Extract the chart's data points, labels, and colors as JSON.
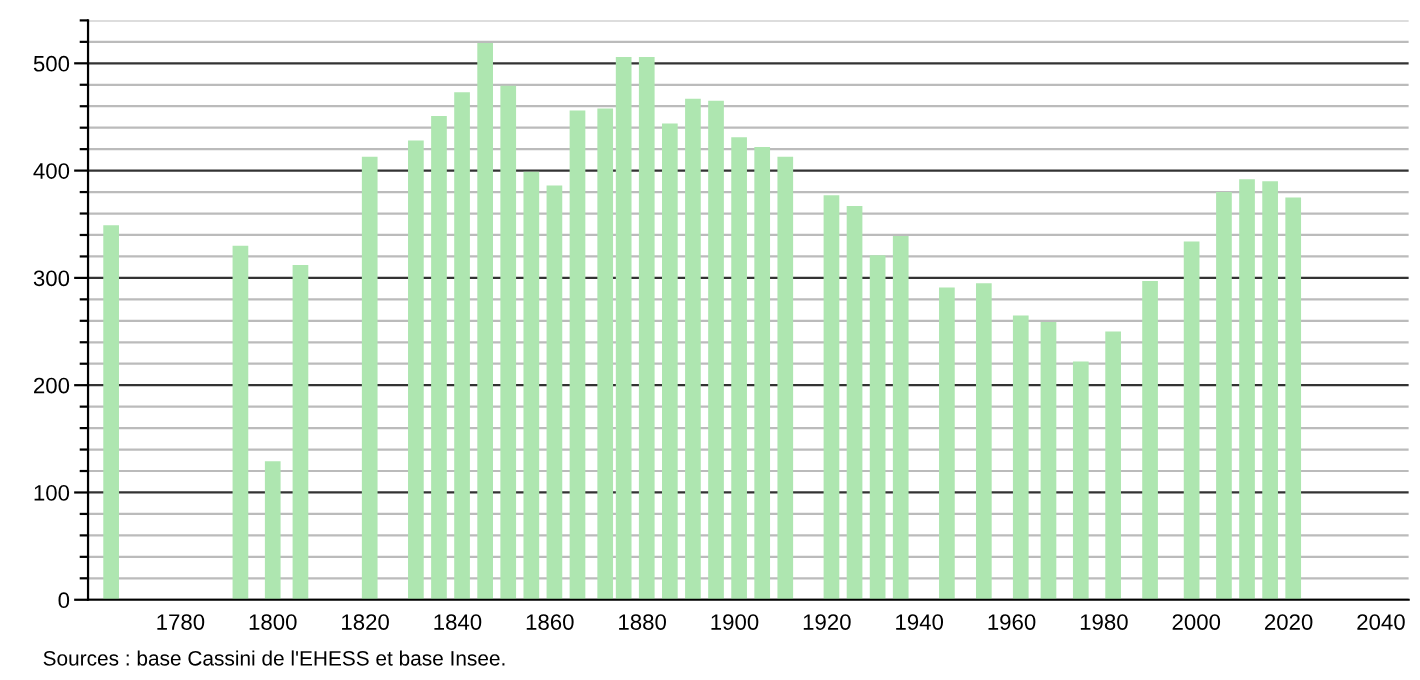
{
  "chart_data": {
    "type": "bar",
    "x": [
      1765,
      1793,
      1800,
      1806,
      1821,
      1831,
      1836,
      1841,
      1846,
      1851,
      1856,
      1861,
      1866,
      1872,
      1876,
      1881,
      1886,
      1891,
      1896,
      1901,
      1906,
      1911,
      1921,
      1926,
      1931,
      1936,
      1946,
      1954,
      1962,
      1968,
      1975,
      1982,
      1990,
      1999,
      2006,
      2011,
      2016,
      2021
    ],
    "values": [
      349,
      330,
      129,
      312,
      413,
      428,
      451,
      473,
      519,
      479,
      399,
      386,
      456,
      458,
      506,
      506,
      444,
      467,
      465,
      431,
      422,
      413,
      377,
      367,
      321,
      339,
      291,
      295,
      265,
      259,
      222,
      250,
      297,
      334,
      380,
      392,
      390,
      375
    ],
    "color": "#aee6b0",
    "xlim": [
      1760,
      2046
    ],
    "xticks": [
      1780,
      1800,
      1820,
      1840,
      1860,
      1880,
      1900,
      1920,
      1940,
      1960,
      1980,
      2000,
      2020,
      2040
    ],
    "ylim": [
      0,
      540
    ],
    "yticks": [
      0,
      {
        "value": 20,
        "label": null
      },
      {
        "value": 40,
        "label": null
      },
      {
        "value": 60,
        "label": null
      },
      {
        "value": 80,
        "label": null
      },
      100,
      {
        "value": 120,
        "label": null
      },
      {
        "value": 140,
        "label": null
      },
      {
        "value": 160,
        "label": null
      },
      {
        "value": 180,
        "label": null
      },
      200,
      {
        "value": 220,
        "label": null
      },
      {
        "value": 240,
        "label": null
      },
      {
        "value": 260,
        "label": null
      },
      {
        "value": 280,
        "label": null
      },
      300,
      {
        "value": 320,
        "label": null
      },
      {
        "value": 340,
        "label": null
      },
      {
        "value": 360,
        "label": null
      },
      {
        "value": 380,
        "label": null
      },
      400,
      {
        "value": 420,
        "label": null
      },
      {
        "value": 440,
        "label": null
      },
      {
        "value": 460,
        "label": null
      },
      {
        "value": 480,
        "label": null
      },
      500,
      {
        "value": 520,
        "label": null
      },
      {
        "value": 540,
        "label": null
      }
    ],
    "grid": "y",
    "annotations": [
      "Sources : base Cassini de l'EHESS et base Insee."
    ]
  }
}
